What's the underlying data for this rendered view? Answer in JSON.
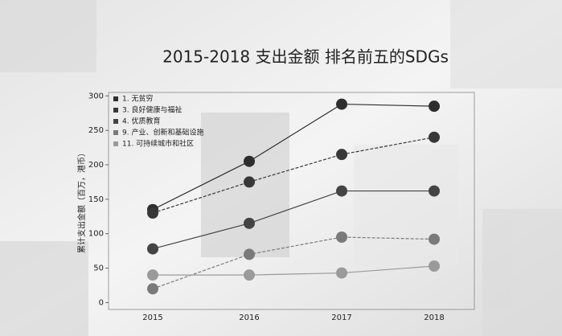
{
  "chart_data": {
    "type": "line",
    "title": "2015-2018 支出金额 排名前五的SDGs",
    "y_label": "累计支出金额（百万，港币）",
    "categories": [
      "2015",
      "2016",
      "2017",
      "2018"
    ],
    "ylim": [
      -10,
      305
    ],
    "yticks": [
      0,
      50,
      100,
      150,
      200,
      250,
      300
    ],
    "legend": "upper left",
    "series": [
      {
        "name": "1. 无贫穷",
        "color": "#2e2e2e",
        "values": [
          135,
          205,
          288,
          285
        ]
      },
      {
        "name": "3. 良好健康与福祉",
        "color": "#383838",
        "values": [
          130,
          175,
          215,
          240
        ]
      },
      {
        "name": "4. 优质教育",
        "color": "#444444",
        "values": [
          78,
          115,
          162,
          162
        ]
      },
      {
        "name": "9. 产业、创新和基础设施",
        "color": "#7a7a7a",
        "values": [
          20,
          70,
          95,
          92
        ]
      },
      {
        "name": "11. 可持续城市和社区",
        "color": "#9a9a9a",
        "values": [
          40,
          40,
          43,
          53
        ]
      }
    ]
  }
}
